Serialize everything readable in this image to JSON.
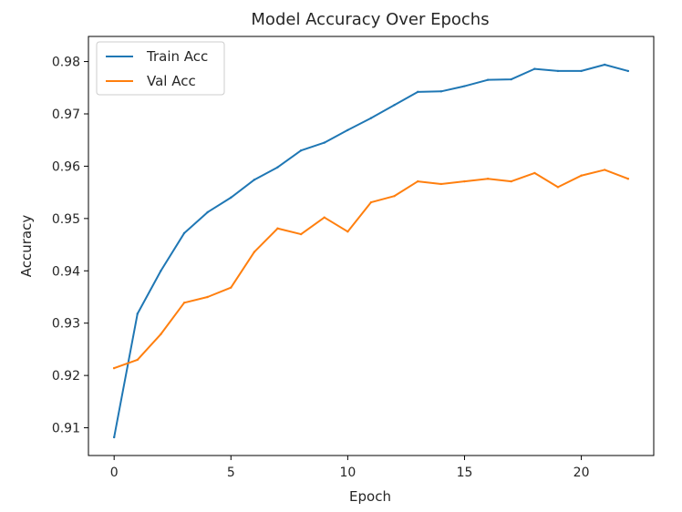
{
  "chart_data": {
    "type": "line",
    "title": "Model Accuracy Over Epochs",
    "xlabel": "Epoch",
    "ylabel": "Accuracy",
    "xlim": [
      -1.1,
      23.1
    ],
    "ylim": [
      0.9047,
      0.9848
    ],
    "x_ticks": [
      0,
      5,
      10,
      15,
      20
    ],
    "y_ticks": [
      0.91,
      0.92,
      0.93,
      0.94,
      0.95,
      0.96,
      0.97,
      0.98
    ],
    "y_tick_labels": [
      "0.91",
      "0.92",
      "0.93",
      "0.94",
      "0.95",
      "0.96",
      "0.97",
      "0.98"
    ],
    "grid": false,
    "legend_position": "top-left",
    "x": [
      0,
      1,
      2,
      3,
      4,
      5,
      6,
      7,
      8,
      9,
      10,
      11,
      12,
      13,
      14,
      15,
      16,
      17,
      18,
      19,
      20,
      21,
      22
    ],
    "series": [
      {
        "name": "Train Acc",
        "color": "#1f77b4",
        "values": [
          0.9082,
          0.9318,
          0.94,
          0.9472,
          0.9512,
          0.954,
          0.9574,
          0.9598,
          0.963,
          0.9645,
          0.9669,
          0.9692,
          0.9717,
          0.9742,
          0.9743,
          0.9753,
          0.9765,
          0.9766,
          0.9786,
          0.9782,
          0.9782,
          0.9794,
          0.9782
        ]
      },
      {
        "name": "Val Acc",
        "color": "#ff7f0e",
        "values": [
          0.9214,
          0.923,
          0.9279,
          0.9339,
          0.935,
          0.9368,
          0.9436,
          0.9481,
          0.947,
          0.9502,
          0.9475,
          0.9531,
          0.9543,
          0.9571,
          0.9566,
          0.9571,
          0.9576,
          0.9571,
          0.9587,
          0.956,
          0.9582,
          0.9593,
          0.9576
        ]
      }
    ]
  }
}
